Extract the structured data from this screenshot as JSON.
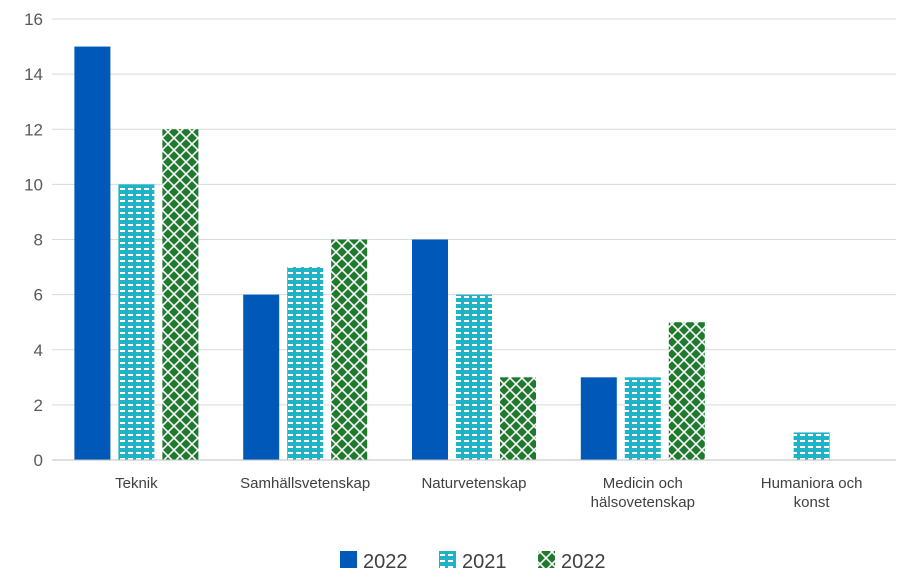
{
  "chart_data": {
    "type": "bar",
    "title": "",
    "xlabel": "",
    "ylabel": "",
    "ylim": [
      0,
      16
    ],
    "ytick_step": 2,
    "grid": true,
    "legend_position": "bottom",
    "categories": [
      [
        "Teknik"
      ],
      [
        "Samhällsvetenskap"
      ],
      [
        "Naturvetenskap"
      ],
      [
        "Medicin och",
        "hälsovetenskap"
      ],
      [
        "Humaniora och",
        "konst"
      ]
    ],
    "series": [
      {
        "name": "2022",
        "values": [
          15,
          6,
          8,
          3,
          0
        ],
        "color": "#0059B8",
        "fill": "solid"
      },
      {
        "name": "2021",
        "values": [
          10,
          7,
          6,
          3,
          1
        ],
        "color": "#1FB3C8",
        "fill": "dashed-pattern"
      },
      {
        "name": "2022",
        "values": [
          12,
          8,
          3,
          5,
          0
        ],
        "color": "#1F7A2E",
        "fill": "crosshatch-pattern"
      }
    ]
  }
}
